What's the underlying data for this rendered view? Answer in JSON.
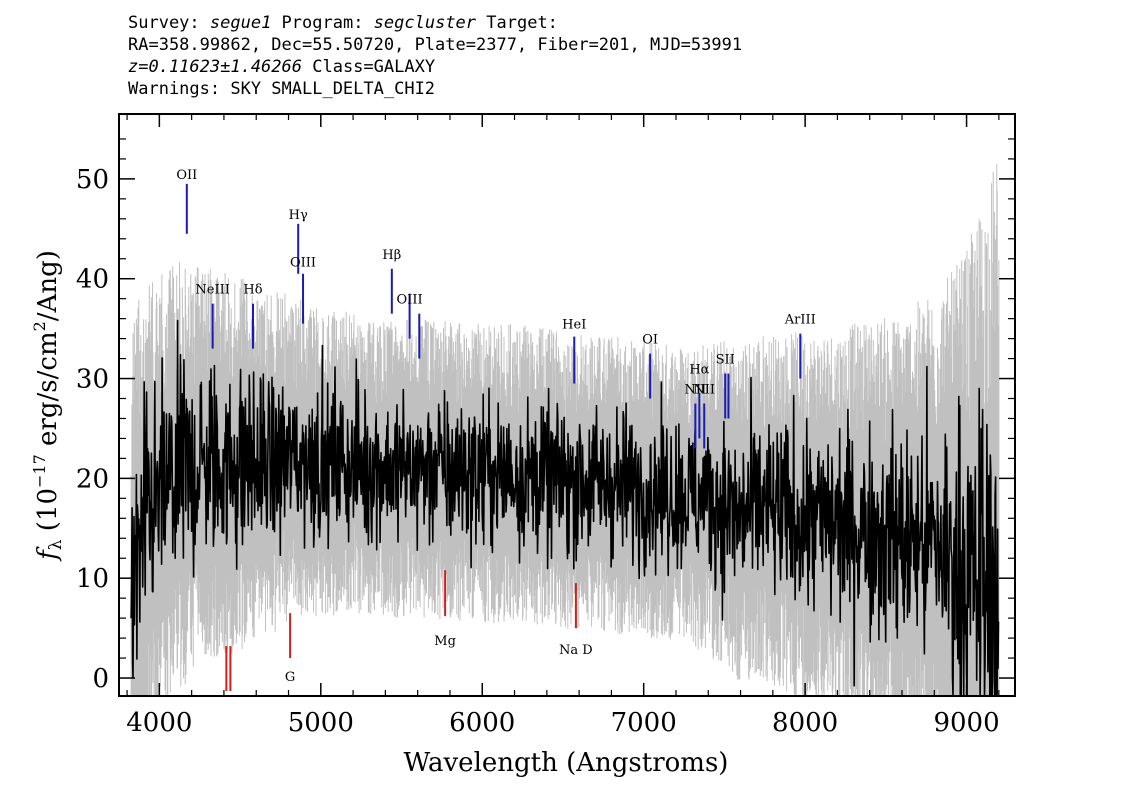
{
  "header": {
    "survey_label": "Survey: ",
    "survey": "segue1",
    "program_label": " Program: ",
    "program": "segcluster",
    "target_label": " Target:",
    "line2": "RA=358.99862, Dec=55.50720, Plate=2377, Fiber=201, MJD=53991",
    "redshift": "z=0.11623±1.46266",
    "class_text": " Class=GALAXY",
    "warnings": "Warnings: SKY SMALL_DELTA_CHI2"
  },
  "chart_data": {
    "type": "line",
    "title": "Survey: segue1 Program: segcluster Target:",
    "xlabel": "Wavelength (Angstroms)",
    "ylabel": "f_λ (10^-17 erg/s/cm^2/Ang)",
    "xlim": [
      3750,
      9300
    ],
    "ylim": [
      -1.8,
      56.5
    ],
    "xticks": [
      4000,
      5000,
      6000,
      7000,
      8000,
      9000
    ],
    "yticks": [
      0,
      10,
      20,
      30,
      40,
      50
    ],
    "colors": {
      "spectrum": "#000000",
      "error": "#c0c0c0",
      "emission": "#1a1ab4",
      "absorption": "#d21e1e"
    },
    "series": [
      {
        "name": "flux",
        "x": [
          3800,
          3850,
          3900,
          3950,
          4000,
          4100,
          4200,
          4300,
          4400,
          4500,
          4600,
          4700,
          4800,
          4900,
          5000,
          5200,
          5400,
          5600,
          5800,
          6000,
          6200,
          6400,
          6600,
          6800,
          7000,
          7200,
          7400,
          7500,
          7600,
          7700,
          7800,
          8000,
          8200,
          8400,
          8600,
          8800,
          8900,
          9000,
          9100,
          9200
        ],
        "y": [
          6,
          10,
          14,
          17,
          18,
          20,
          21,
          21.5,
          21.5,
          21.5,
          21.5,
          21.5,
          22,
          22,
          21.8,
          21.5,
          21,
          21,
          20.8,
          20.5,
          20.5,
          20,
          19.8,
          19.5,
          19,
          18.5,
          18,
          17.5,
          16,
          17.5,
          16.5,
          16,
          15.5,
          15,
          14,
          13.5,
          12,
          10,
          9,
          8
        ]
      },
      {
        "name": "error",
        "x": [
          3800,
          3850,
          3900,
          3950,
          4000,
          4100,
          4200,
          4300,
          4400,
          4500,
          4600,
          4700,
          4800,
          4900,
          5000,
          5200,
          5400,
          5600,
          5800,
          6000,
          6200,
          6400,
          6600,
          6800,
          7000,
          7200,
          7400,
          7500,
          7600,
          7700,
          7800,
          8000,
          8200,
          8400,
          8600,
          8800,
          8900,
          9000,
          9100,
          9200
        ],
        "y": [
          20,
          18,
          17,
          16,
          15,
          14.5,
          14,
          13.5,
          13,
          12.5,
          12,
          11.5,
          11,
          10.5,
          10.5,
          10,
          10,
          10,
          10,
          10,
          10,
          10,
          10,
          10,
          10,
          10,
          10.5,
          11,
          11.5,
          11.5,
          12,
          12.5,
          13,
          14,
          15,
          17,
          19,
          22,
          26,
          30
        ]
      }
    ],
    "emission_lines": [
      {
        "label": "OII",
        "x": 4170,
        "y0": 44.5,
        "y1": 49.5,
        "label_y": 50
      },
      {
        "label": "NeIII",
        "x": 4330,
        "y0": 33,
        "y1": 37.5,
        "label_y": 38.5
      },
      {
        "label": "Hδ",
        "x": 4580,
        "y0": 33,
        "y1": 37.5,
        "label_y": 38.5
      },
      {
        "label": "Hγ",
        "x": 4860,
        "y0": 40.5,
        "y1": 45.5,
        "label_y": 46
      },
      {
        "label": "OIII",
        "x": 4890,
        "y0": 35.5,
        "y1": 40.5,
        "label_y": 41.2
      },
      {
        "label": "Hβ",
        "x": 5440,
        "y0": 36.5,
        "y1": 41,
        "label_y": 42
      },
      {
        "label": "OIII",
        "x": 5550,
        "y0": 34,
        "y1": 38.5,
        "label_y": 37.5
      },
      {
        "label": "",
        "x": 5610,
        "y0": 32,
        "y1": 36.5,
        "label_y": 0
      },
      {
        "label": "HeI",
        "x": 6570,
        "y0": 29.5,
        "y1": 34.2,
        "label_y": 35
      },
      {
        "label": "OI",
        "x": 7040,
        "y0": 28,
        "y1": 32.5,
        "label_y": 33.5
      },
      {
        "label": "NII",
        "x": 7320,
        "y0": 23,
        "y1": 27.5,
        "label_y": 28.5
      },
      {
        "label": "Hα",
        "x": 7345,
        "y0": 24,
        "y1": 28.5,
        "label_y": 30.5
      },
      {
        "label": "NII",
        "x": 7375,
        "y0": 23,
        "y1": 27.5,
        "label_y": 28.5
      },
      {
        "label": "SII",
        "x": 7505,
        "y0": 26,
        "y1": 30.5,
        "label_y": 31.5
      },
      {
        "label": "",
        "x": 7525,
        "y0": 26,
        "y1": 30.5,
        "label_y": 0
      },
      {
        "label": "ArIII",
        "x": 7970,
        "y0": 30,
        "y1": 34.5,
        "label_y": 35.5
      }
    ],
    "absorption_lines": [
      {
        "label": "",
        "x": 4415,
        "y0": -1.3,
        "y1": 3.2,
        "label_y": 0
      },
      {
        "label": "",
        "x": 4440,
        "y0": -1.3,
        "y1": 3.2,
        "label_y": 0
      },
      {
        "label": "G",
        "x": 4810,
        "y0": 2,
        "y1": 6.5,
        "label_y": -0.3
      },
      {
        "label": "Mg",
        "x": 5770,
        "y0": 6.2,
        "y1": 10.8,
        "label_y": 3.3
      },
      {
        "label": "Na D",
        "x": 6580,
        "y0": 5,
        "y1": 9.5,
        "label_y": 2.4
      }
    ]
  }
}
